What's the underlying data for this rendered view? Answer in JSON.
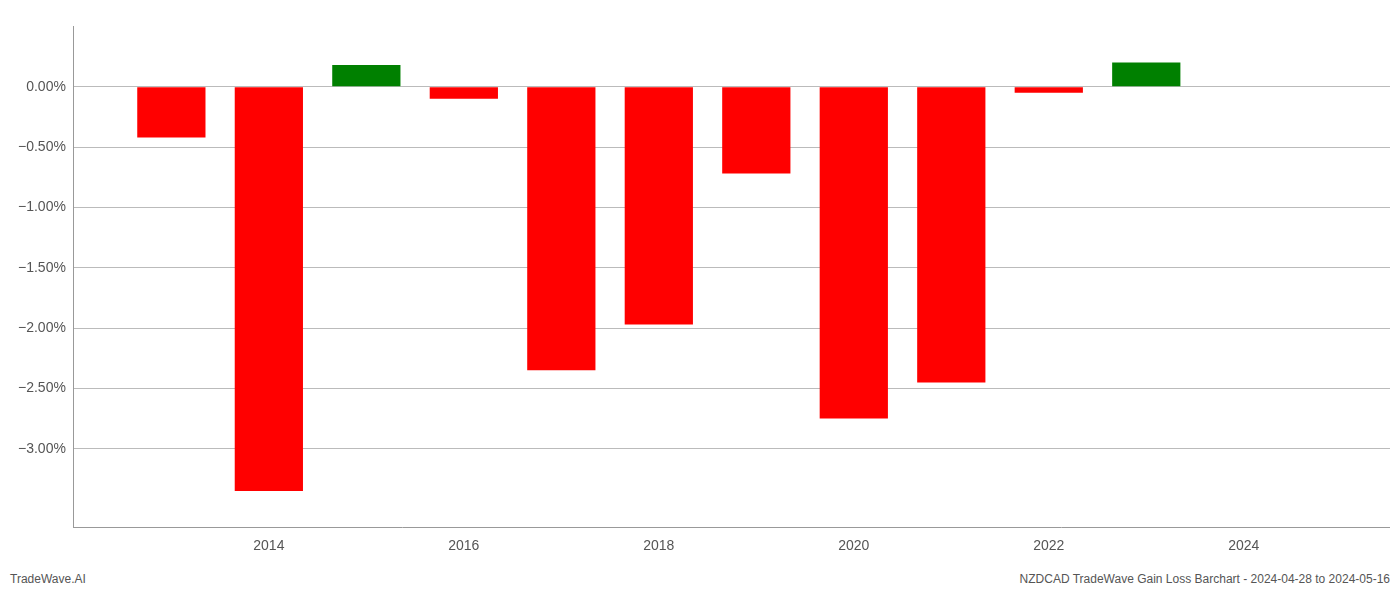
{
  "chart_data": {
    "type": "bar",
    "x": [
      2013,
      2014,
      2015,
      2016,
      2017,
      2018,
      2019,
      2020,
      2021,
      2022,
      2023
    ],
    "values": [
      -0.42,
      -3.35,
      0.18,
      -0.1,
      -2.35,
      -1.97,
      -0.72,
      -2.75,
      -2.45,
      -0.05,
      0.2
    ],
    "colors": [
      "#ff0000",
      "#ff0000",
      "#008000",
      "#ff0000",
      "#ff0000",
      "#ff0000",
      "#ff0000",
      "#ff0000",
      "#ff0000",
      "#ff0000",
      "#008000"
    ],
    "xlim": [
      2012.0,
      2025.5
    ],
    "xticks": [
      2014,
      2016,
      2018,
      2020,
      2022,
      2024
    ],
    "ylim": [
      -3.65,
      0.5
    ],
    "yticks": [
      {
        "value": 0.0,
        "label": "0.00%"
      },
      {
        "value": -0.5,
        "label": "−0.50%"
      },
      {
        "value": -1.0,
        "label": "−1.00%"
      },
      {
        "value": -1.5,
        "label": "−1.50%"
      },
      {
        "value": -2.0,
        "label": "−2.00%"
      },
      {
        "value": -2.5,
        "label": "−2.50%"
      },
      {
        "value": -3.0,
        "label": "−3.00%"
      }
    ],
    "grid": true,
    "annotations": [
      "TradeWave.AI",
      "NZDCAD TradeWave Gain Loss Barchart - 2024-04-28 to 2024-05-16"
    ]
  }
}
